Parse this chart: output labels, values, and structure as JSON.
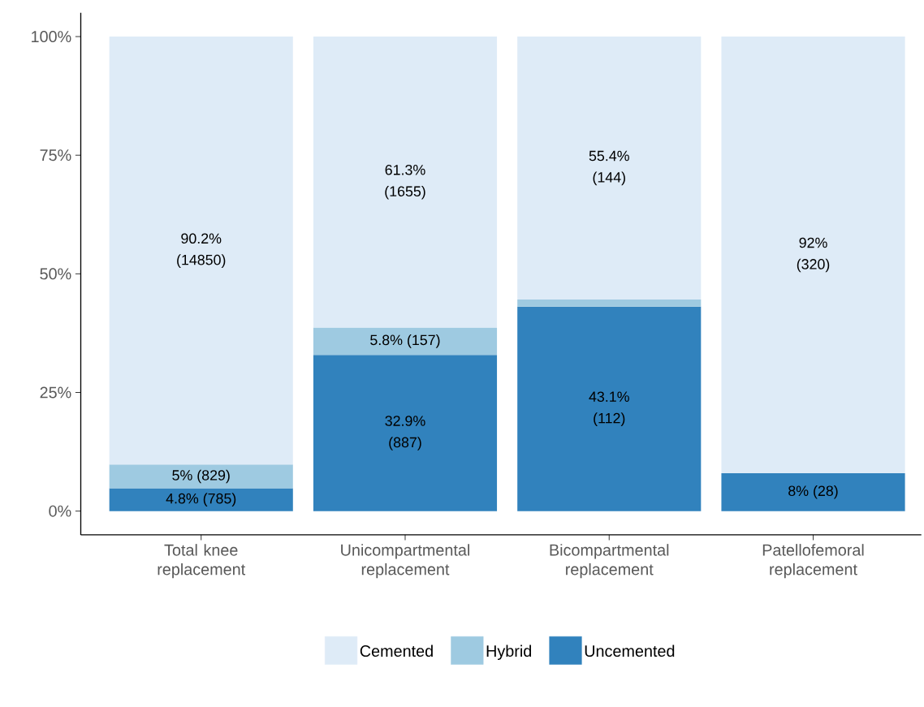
{
  "chart_data": {
    "type": "bar",
    "stacked": true,
    "categories": [
      "Total knee replacement",
      "Unicompartmental replacement",
      "Bicompartmental replacement",
      "Patellofemoral replacement"
    ],
    "series": [
      {
        "name": "Uncemented",
        "color": "#3182bd",
        "values": [
          4.8,
          32.9,
          43.1,
          8
        ],
        "value_labels": [
          "4.8% (785)",
          "32.9% (887)",
          "43.1% (112)",
          "8% (28)"
        ]
      },
      {
        "name": "Hybrid",
        "color": "#9ecae1",
        "values": [
          5,
          5.8,
          1.5,
          null
        ],
        "value_labels": [
          "5% (829)",
          "5.8% (157)",
          null,
          null
        ]
      },
      {
        "name": "Cemented",
        "color": "#deebf7",
        "values": [
          90.2,
          61.3,
          55.4,
          92
        ],
        "value_labels": [
          "90.2% (14850)",
          "61.3% (1655)",
          "55.4% (144)",
          "92% (320)"
        ]
      }
    ],
    "ylim": [
      -5,
      105
    ],
    "yticks": [
      {
        "value": 0,
        "label": "0%"
      },
      {
        "value": 25,
        "label": "25%"
      },
      {
        "value": 50,
        "label": "50%"
      },
      {
        "value": 75,
        "label": "75%"
      },
      {
        "value": 100,
        "label": "100%"
      }
    ],
    "grid": false,
    "legend": "bottom"
  }
}
